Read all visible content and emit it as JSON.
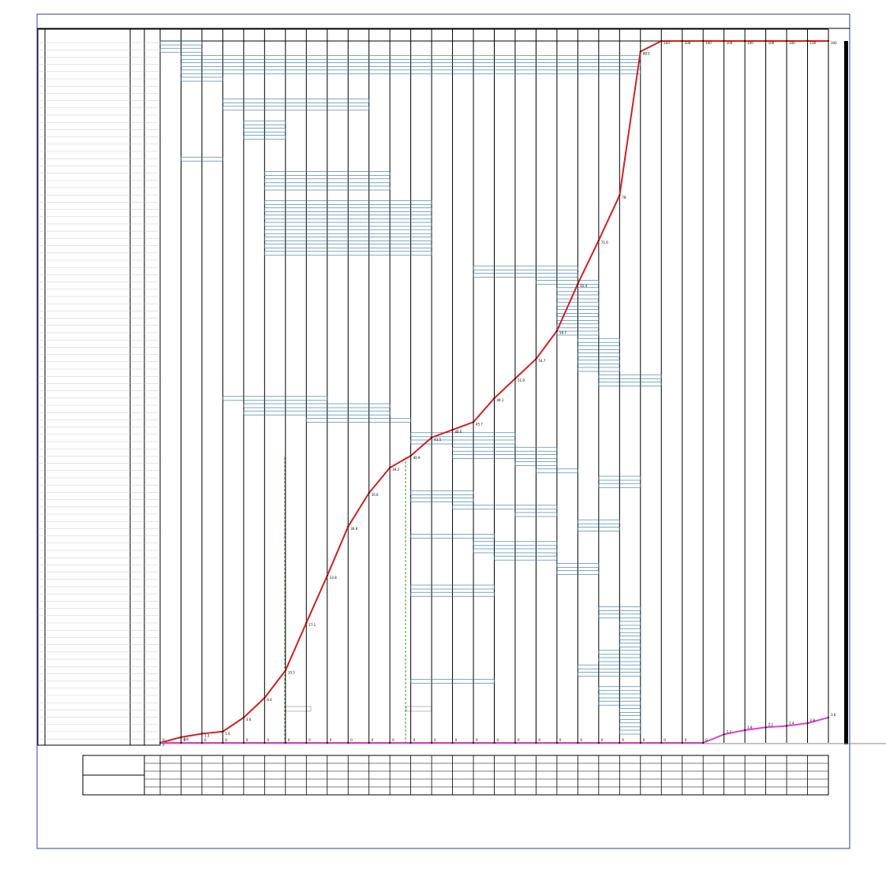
{
  "chart_data": {
    "type": "line",
    "ylim": [
      0,
      100
    ],
    "series": [
      {
        "color": "#d41f1f",
        "values": [
          0,
          0.8,
          1.3,
          1.6,
          3.6,
          6.4,
          10.3,
          17.1,
          23.8,
          30.8,
          35.6,
          39.2,
          40.9,
          43.5,
          44.6,
          45.7,
          49.1,
          51.9,
          54.7,
          58.7,
          65.4,
          71.6,
          78.0,
          98.5,
          100,
          100,
          100,
          100,
          100,
          100,
          100,
          100,
          100
        ]
      },
      {
        "color": "#e040d0",
        "values": [
          0,
          0,
          0,
          0,
          0,
          0,
          0,
          0,
          0,
          0,
          0,
          0,
          0,
          0,
          0,
          0,
          0,
          0,
          0,
          0,
          0,
          0,
          0,
          0,
          0,
          0,
          0,
          1.2,
          1.8,
          2.2,
          2.4,
          2.8,
          3.6
        ]
      }
    ],
    "task_color": "#2a6fa0",
    "tasks": [
      [
        0,
        2
      ],
      [
        0,
        2
      ],
      [
        1,
        23
      ],
      [
        1,
        23
      ],
      [
        1,
        23
      ],
      [
        1,
        3
      ],
      null,
      null,
      [
        3,
        10
      ],
      [
        3,
        10
      ],
      null,
      [
        4,
        6
      ],
      [
        4,
        6
      ],
      [
        4,
        6
      ],
      null,
      null,
      [
        1,
        3
      ],
      null,
      [
        5,
        11
      ],
      [
        5,
        11
      ],
      [
        5,
        11
      ],
      null,
      [
        5,
        13
      ],
      [
        5,
        13
      ],
      [
        5,
        13
      ],
      [
        5,
        13
      ],
      [
        5,
        13
      ],
      [
        5,
        13
      ],
      [
        5,
        13
      ],
      [
        5,
        13
      ],
      null,
      [
        15,
        20
      ],
      [
        15,
        20
      ],
      [
        18,
        21
      ],
      [
        19,
        21
      ],
      [
        19,
        21
      ],
      [
        19,
        21
      ],
      [
        19,
        21
      ],
      [
        19,
        21
      ],
      [
        19,
        21
      ],
      [
        19,
        21
      ],
      [
        20,
        22
      ],
      [
        20,
        22
      ],
      [
        20,
        22
      ],
      [
        20,
        22
      ],
      [
        20,
        22
      ],
      [
        21,
        24
      ],
      [
        21,
        24
      ],
      null,
      [
        3,
        8
      ],
      [
        4,
        11
      ],
      [
        4,
        11
      ],
      [
        7,
        12
      ],
      null,
      [
        12,
        17
      ],
      [
        12,
        17
      ],
      [
        14,
        19
      ],
      [
        14,
        19
      ],
      [
        17,
        19
      ],
      [
        18,
        20
      ],
      [
        21,
        23
      ],
      [
        21,
        23
      ],
      [
        12,
        15
      ],
      [
        12,
        15
      ],
      [
        14,
        19
      ],
      [
        17,
        19
      ],
      [
        20,
        22
      ],
      [
        20,
        22
      ],
      [
        12,
        16
      ],
      [
        15,
        19
      ],
      [
        15,
        19
      ],
      [
        16,
        19
      ],
      [
        19,
        21
      ],
      [
        19,
        21
      ],
      null,
      [
        12,
        16
      ],
      [
        12,
        16
      ],
      null,
      [
        21,
        23
      ],
      [
        21,
        23
      ],
      [
        22,
        23
      ],
      [
        22,
        23
      ],
      [
        22,
        23
      ],
      [
        22,
        23
      ],
      [
        21,
        23
      ],
      [
        21,
        23
      ],
      [
        20,
        23
      ],
      [
        20,
        23
      ],
      [
        12,
        16
      ],
      [
        21,
        23
      ],
      [
        21,
        23
      ],
      [
        21,
        23
      ],
      [
        22,
        23
      ],
      [
        22,
        23
      ],
      [
        22,
        23
      ],
      [
        22,
        23
      ]
    ]
  }
}
